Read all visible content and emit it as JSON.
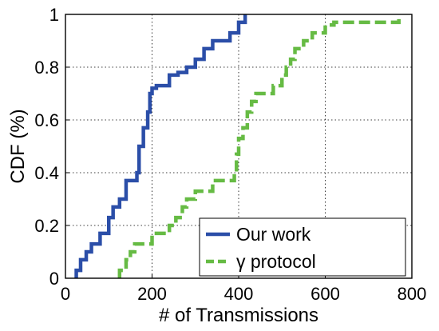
{
  "chart_data": {
    "type": "line",
    "step": true,
    "xlabel": "# of Transmissions",
    "ylabel": "CDF (%)",
    "xlim": [
      0,
      800
    ],
    "ylim": [
      0,
      1
    ],
    "xticks": [
      "0",
      "200",
      "400",
      "600",
      "800"
    ],
    "yticks": [
      "0",
      "0.2",
      "0.4",
      "0.6",
      "0.8",
      "1"
    ],
    "grid": true,
    "legend_position": "bottom-right",
    "series": [
      {
        "name": "Our work",
        "color": "#2b4ea8",
        "style": "solid",
        "x": [
          25,
          35,
          48,
          60,
          80,
          100,
          110,
          125,
          140,
          165,
          170,
          180,
          190,
          195,
          200,
          210,
          240,
          260,
          280,
          300,
          320,
          340,
          380,
          400,
          415
        ],
        "y": [
          0.03,
          0.07,
          0.1,
          0.13,
          0.17,
          0.23,
          0.27,
          0.3,
          0.37,
          0.4,
          0.5,
          0.57,
          0.63,
          0.7,
          0.72,
          0.73,
          0.77,
          0.78,
          0.8,
          0.83,
          0.87,
          0.9,
          0.93,
          0.97,
          1.0
        ]
      },
      {
        "name": "γ protocol",
        "color": "#66bb44",
        "style": "dashed",
        "x": [
          125,
          140,
          150,
          160,
          200,
          240,
          255,
          270,
          280,
          300,
          340,
          390,
          395,
          400,
          410,
          420,
          430,
          440,
          480,
          500,
          510,
          520,
          530,
          550,
          570,
          600,
          620,
          770
        ],
        "y": [
          0.03,
          0.07,
          0.1,
          0.13,
          0.17,
          0.2,
          0.23,
          0.27,
          0.3,
          0.33,
          0.37,
          0.4,
          0.47,
          0.53,
          0.57,
          0.63,
          0.67,
          0.7,
          0.73,
          0.77,
          0.8,
          0.83,
          0.87,
          0.9,
          0.93,
          0.96,
          0.97,
          1.0
        ]
      }
    ]
  }
}
